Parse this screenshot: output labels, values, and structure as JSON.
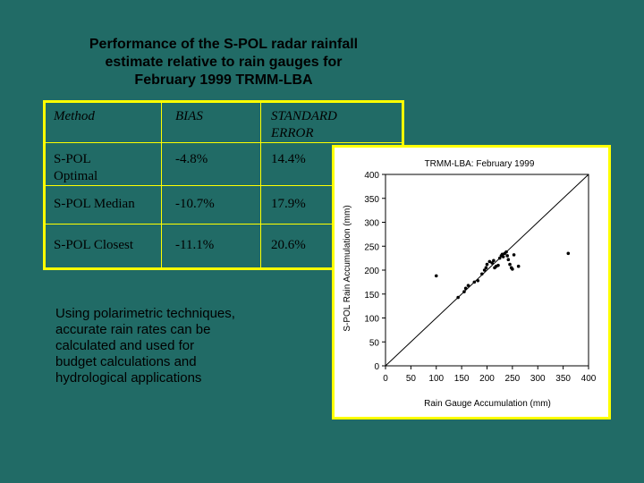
{
  "title": {
    "line1": "Performance of the S-POL radar rainfall",
    "line2": "estimate relative to rain gauges for",
    "line3": "February 1999  TRMM-LBA"
  },
  "table": {
    "headers": {
      "method": "Method",
      "bias": "BIAS",
      "std_line1": "STANDARD",
      "std_line2": "ERROR"
    },
    "rows": [
      {
        "method_line1": "S-POL",
        "method_line2": "Optimal",
        "bias": "-4.8%",
        "std": "14.4%"
      },
      {
        "method_line1": "S-POL Median",
        "method_line2": "",
        "bias": "-10.7%",
        "std": "17.9%"
      },
      {
        "method_line1": "S-POL Closest",
        "method_line2": "",
        "bias": "-11.1%",
        "std": "20.6%"
      }
    ]
  },
  "body_text": {
    "line1": "Using polarimetric techniques,",
    "line2": "accurate rain rates can be",
    "line3": "calculated and used for",
    "line4": "budget calculations and",
    "line5": "hydrological applications"
  },
  "colors": {
    "background": "#216b66",
    "border": "#ffff00"
  },
  "chart_data": {
    "type": "scatter",
    "title": "TRMM-LBA:  February 1999",
    "xlabel": "Rain Gauge Accumulation (mm)",
    "ylabel": "S-POL Rain Accumulation (mm)",
    "xlim": [
      0,
      400
    ],
    "ylim": [
      0,
      400
    ],
    "xticks": [
      0,
      50,
      100,
      150,
      200,
      250,
      300,
      350,
      400
    ],
    "yticks": [
      0,
      50,
      100,
      150,
      200,
      250,
      300,
      350,
      400
    ],
    "reference_line": "1:1",
    "grid": false,
    "points": [
      [
        100,
        188
      ],
      [
        143,
        143
      ],
      [
        155,
        155
      ],
      [
        158,
        162
      ],
      [
        163,
        168
      ],
      [
        175,
        175
      ],
      [
        182,
        178
      ],
      [
        190,
        192
      ],
      [
        195,
        200
      ],
      [
        198,
        205
      ],
      [
        200,
        212
      ],
      [
        205,
        218
      ],
      [
        210,
        215
      ],
      [
        213,
        220
      ],
      [
        215,
        205
      ],
      [
        218,
        208
      ],
      [
        222,
        210
      ],
      [
        225,
        225
      ],
      [
        228,
        230
      ],
      [
        230,
        233
      ],
      [
        232,
        228
      ],
      [
        235,
        235
      ],
      [
        238,
        238
      ],
      [
        240,
        230
      ],
      [
        242,
        222
      ],
      [
        245,
        212
      ],
      [
        248,
        205
      ],
      [
        250,
        202
      ],
      [
        253,
        232
      ],
      [
        262,
        208
      ],
      [
        360,
        235
      ]
    ]
  }
}
